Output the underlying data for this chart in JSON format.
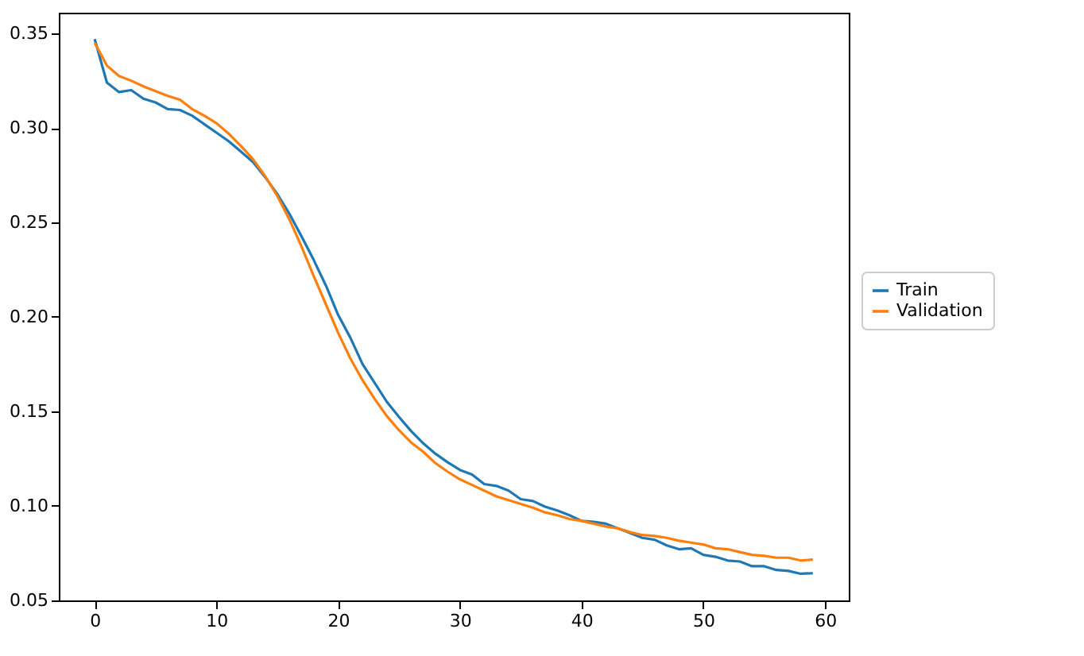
{
  "chart_data": {
    "type": "line",
    "x": [
      0,
      1,
      2,
      3,
      4,
      5,
      6,
      7,
      8,
      9,
      10,
      11,
      12,
      13,
      14,
      15,
      16,
      17,
      18,
      19,
      20,
      21,
      22,
      23,
      24,
      25,
      26,
      27,
      28,
      29,
      30,
      31,
      32,
      33,
      34,
      35,
      36,
      37,
      38,
      39,
      40,
      41,
      42,
      43,
      44,
      45,
      46,
      47,
      48,
      49,
      50,
      51,
      52,
      53,
      54,
      55,
      56,
      57,
      58,
      59
    ],
    "series": [
      {
        "name": "Train",
        "color": "#1f77b4",
        "values": [
          0.347,
          0.324,
          0.319,
          0.32,
          0.3155,
          0.3135,
          0.31,
          0.3095,
          0.3065,
          0.302,
          0.2975,
          0.293,
          0.2875,
          0.282,
          0.274,
          0.265,
          0.2545,
          0.2425,
          0.23,
          0.2165,
          0.201,
          0.189,
          0.175,
          0.165,
          0.155,
          0.147,
          0.1395,
          0.133,
          0.1275,
          0.123,
          0.119,
          0.1165,
          0.1115,
          0.1105,
          0.108,
          0.1035,
          0.1025,
          0.0995,
          0.0975,
          0.095,
          0.092,
          0.0915,
          0.0905,
          0.088,
          0.0855,
          0.083,
          0.082,
          0.079,
          0.077,
          0.0775,
          0.074,
          0.073,
          0.071,
          0.0705,
          0.068,
          0.068,
          0.066,
          0.0655,
          0.064,
          0.0643
        ]
      },
      {
        "name": "Validation",
        "color": "#ff7f0e",
        "values": [
          0.345,
          0.333,
          0.3275,
          0.325,
          0.322,
          0.3195,
          0.317,
          0.315,
          0.31,
          0.3065,
          0.3025,
          0.297,
          0.2905,
          0.2835,
          0.2745,
          0.264,
          0.2515,
          0.237,
          0.2215,
          0.2065,
          0.1915,
          0.178,
          0.1665,
          0.1565,
          0.1475,
          0.14,
          0.1335,
          0.1285,
          0.1225,
          0.118,
          0.114,
          0.111,
          0.108,
          0.105,
          0.103,
          0.101,
          0.099,
          0.0965,
          0.095,
          0.093,
          0.092,
          0.0905,
          0.089,
          0.088,
          0.086,
          0.0845,
          0.084,
          0.083,
          0.0815,
          0.0805,
          0.0795,
          0.0775,
          0.077,
          0.0755,
          0.074,
          0.0735,
          0.0725,
          0.0725,
          0.071,
          0.0715
        ]
      }
    ],
    "xlim": [
      -2.95,
      61.95
    ],
    "xticks": [
      0,
      10,
      20,
      30,
      40,
      50,
      60
    ],
    "ylim": [
      0.0499,
      0.361
    ],
    "yticks": [
      {
        "value": 0.05,
        "label": "0.05"
      },
      {
        "value": 0.1,
        "label": "0.10"
      },
      {
        "value": 0.15,
        "label": "0.15"
      },
      {
        "value": 0.2,
        "label": "0.20"
      },
      {
        "value": 0.25,
        "label": "0.25"
      },
      {
        "value": 0.3,
        "label": "0.30"
      },
      {
        "value": 0.35,
        "label": "0.35"
      }
    ],
    "grid": false,
    "legend": "right",
    "marker": "none",
    "line_style": "solid"
  }
}
